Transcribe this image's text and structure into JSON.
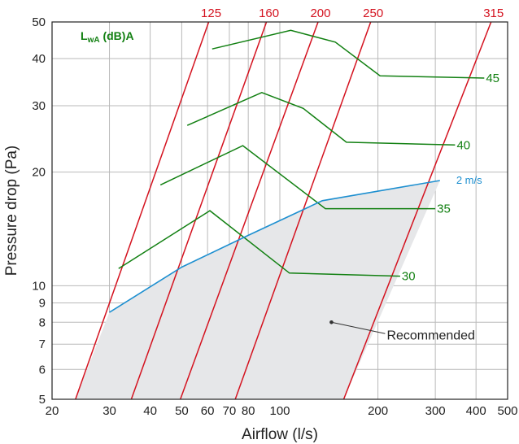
{
  "chart_data": {
    "type": "line",
    "xlabel": "Airflow (l/s)",
    "ylabel": "Pressure drop (Pa)",
    "xscale": "log",
    "yscale": "log",
    "xlim": [
      20,
      500
    ],
    "ylim": [
      5,
      50
    ],
    "x_ticks": [
      20,
      30,
      40,
      50,
      60,
      70,
      80,
      90,
      100,
      200,
      300,
      400,
      500
    ],
    "x_tick_labels": [
      "20",
      "30",
      "40",
      "50",
      "60",
      "70",
      "80",
      "",
      "100",
      "200",
      "300",
      "400",
      "500"
    ],
    "y_ticks": [
      5,
      6,
      7,
      8,
      9,
      10,
      20,
      30,
      40,
      50
    ],
    "y_tick_labels": [
      "5",
      "6",
      "7",
      "8",
      "9",
      "10",
      "20",
      "30",
      "40",
      "50"
    ],
    "grid": true,
    "sound_power_label": {
      "main": "L",
      "sub": "wA",
      "rest": " (dB)A"
    },
    "duct_sizes": [
      {
        "name": "125",
        "points": [
          [
            23.6,
            5
          ],
          [
            60.5,
            50
          ]
        ]
      },
      {
        "name": "160",
        "points": [
          [
            35,
            5
          ],
          [
            91,
            50
          ]
        ]
      },
      {
        "name": "200",
        "points": [
          [
            49.5,
            5
          ],
          [
            131,
            50
          ]
        ]
      },
      {
        "name": "250",
        "points": [
          [
            73,
            5
          ],
          [
            190,
            50
          ]
        ]
      },
      {
        "name": "315",
        "points": [
          [
            157,
            5
          ],
          [
            445,
            50
          ]
        ]
      }
    ],
    "sound_levels": [
      {
        "name": "30",
        "points": [
          [
            32,
            11.1
          ],
          [
            61,
            15.8
          ],
          [
            107,
            10.8
          ],
          [
            234,
            10.6
          ]
        ]
      },
      {
        "name": "35",
        "points": [
          [
            43,
            18.5
          ],
          [
            77,
            23.5
          ],
          [
            138,
            16
          ],
          [
            300,
            16
          ]
        ]
      },
      {
        "name": "40",
        "points": [
          [
            52,
            26.6
          ],
          [
            88,
            32.5
          ],
          [
            118,
            29.5
          ],
          [
            160,
            24
          ],
          [
            345,
            23.6
          ]
        ]
      },
      {
        "name": "45",
        "points": [
          [
            62,
            42.4
          ],
          [
            108,
            47.5
          ],
          [
            148,
            44.2
          ],
          [
            203,
            36
          ],
          [
            424,
            35.5
          ]
        ]
      }
    ],
    "velocity": {
      "name": "2 m/s",
      "points": [
        [
          30,
          8.5
        ],
        [
          50,
          11.2
        ],
        [
          80,
          13.6
        ],
        [
          135,
          16.8
        ],
        [
          310,
          19
        ]
      ]
    },
    "region": {
      "name": "Recommended",
      "points": [
        [
          23.6,
          5
        ],
        [
          30,
          8.5
        ],
        [
          50,
          11.2
        ],
        [
          80,
          13.6
        ],
        [
          135,
          16.8
        ],
        [
          310,
          19
        ],
        [
          157,
          5
        ]
      ],
      "annotation_at": [
        144,
        8
      ]
    }
  }
}
